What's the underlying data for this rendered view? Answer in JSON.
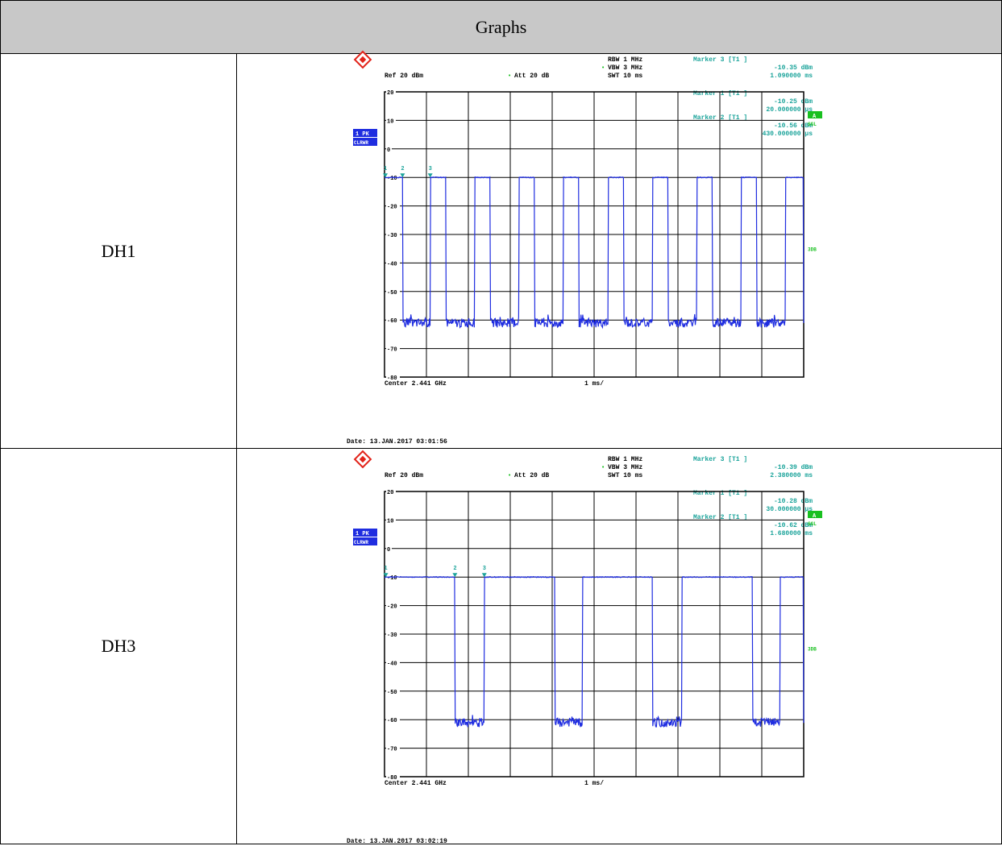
{
  "table": {
    "header": "Graphs"
  },
  "colors": {
    "trace": "#1f2de0",
    "marker_text": "#1aa39a",
    "grid": "#000000",
    "header_bg": "#c8c8c8",
    "badge_bg": "#1f2de0",
    "green_box": "#19c020"
  },
  "chart_data": [
    {
      "type": "line",
      "row_label": "DH1",
      "header": {
        "rbw": "RBW 1 MHz",
        "vbw": "VBW 3 MHz",
        "swt": "SWT 10 ms",
        "ref": "Ref  20 dBm",
        "att": "Att  20 dB"
      },
      "markers_text": [
        {
          "title": "Marker 3 [T1 ]",
          "level": "-10.35 dBm",
          "time": "1.090000 ms"
        },
        {
          "title": "Marker 1 [T1 ]",
          "level": "-10.25 dBm",
          "time": "20.000000 μs"
        },
        {
          "title": "Marker 2 [T1 ]",
          "level": "-10.56 dBm",
          "time": "430.000000 μs"
        }
      ],
      "side_labels": {
        "trace_badge": "1 PK",
        "mode_badge": "CLRWR",
        "a_box": "A",
        "sgl": "SGL",
        "three_db": "3DB"
      },
      "yticks": [
        "20",
        "10",
        "0",
        "-10",
        "-20",
        "-30",
        "-40",
        "-50",
        "-60",
        "-70",
        "-80"
      ],
      "xlabel_left": "Center 2.441 GHz",
      "xlabel_mid": "1 ms/",
      "date": "Date: 13.JAN.2017  03:01:56",
      "marker_points": [
        {
          "label": "1",
          "t_ms": 0.02
        },
        {
          "label": "2",
          "t_ms": 0.43
        },
        {
          "label": "3",
          "t_ms": 1.09
        }
      ],
      "high_level_dbm": -10,
      "low_level_dbm": -61,
      "ylim": [
        -80,
        20
      ],
      "xlim_ms": [
        0,
        10
      ],
      "pulses_ms": [
        [
          0.0,
          0.43
        ],
        [
          1.09,
          1.47
        ],
        [
          2.15,
          2.52
        ],
        [
          3.21,
          3.58
        ],
        [
          4.27,
          4.64
        ],
        [
          5.33,
          5.71
        ],
        [
          6.39,
          6.76
        ],
        [
          7.45,
          7.82
        ],
        [
          8.51,
          8.88
        ],
        [
          9.57,
          10.0
        ]
      ]
    },
    {
      "type": "line",
      "row_label": "DH3",
      "header": {
        "rbw": "RBW 1 MHz",
        "vbw": "VBW 3 MHz",
        "swt": "SWT 10 ms",
        "ref": "Ref  20 dBm",
        "att": "Att  20 dB"
      },
      "markers_text": [
        {
          "title": "Marker 3 [T1 ]",
          "level": "-10.39 dBm",
          "time": "2.380000 ms"
        },
        {
          "title": "Marker 1 [T1 ]",
          "level": "-10.28 dBm",
          "time": "30.000000 μs"
        },
        {
          "title": "Marker 2 [T1 ]",
          "level": "-10.62 dBm",
          "time": "1.680000 ms"
        }
      ],
      "side_labels": {
        "trace_badge": "1 PK",
        "mode_badge": "CLRWR",
        "a_box": "A",
        "sgl": "SGL",
        "three_db": "3DB"
      },
      "yticks": [
        "20",
        "10",
        "0",
        "-10",
        "-20",
        "-30",
        "-40",
        "-50",
        "-60",
        "-70",
        "-80"
      ],
      "xlabel_left": "Center 2.441 GHz",
      "xlabel_mid": "1 ms/",
      "date": "Date: 13.JAN.2017  03:02:19",
      "marker_points": [
        {
          "label": "1",
          "t_ms": 0.03
        },
        {
          "label": "2",
          "t_ms": 1.68
        },
        {
          "label": "3",
          "t_ms": 2.38
        }
      ],
      "high_level_dbm": -10,
      "low_level_dbm": -61,
      "ylim": [
        -80,
        20
      ],
      "xlim_ms": [
        0,
        10
      ],
      "pulses_ms": [
        [
          0.0,
          1.68
        ],
        [
          2.38,
          4.06
        ],
        [
          4.72,
          6.4
        ],
        [
          7.1,
          8.78
        ],
        [
          9.44,
          10.0
        ]
      ]
    }
  ]
}
